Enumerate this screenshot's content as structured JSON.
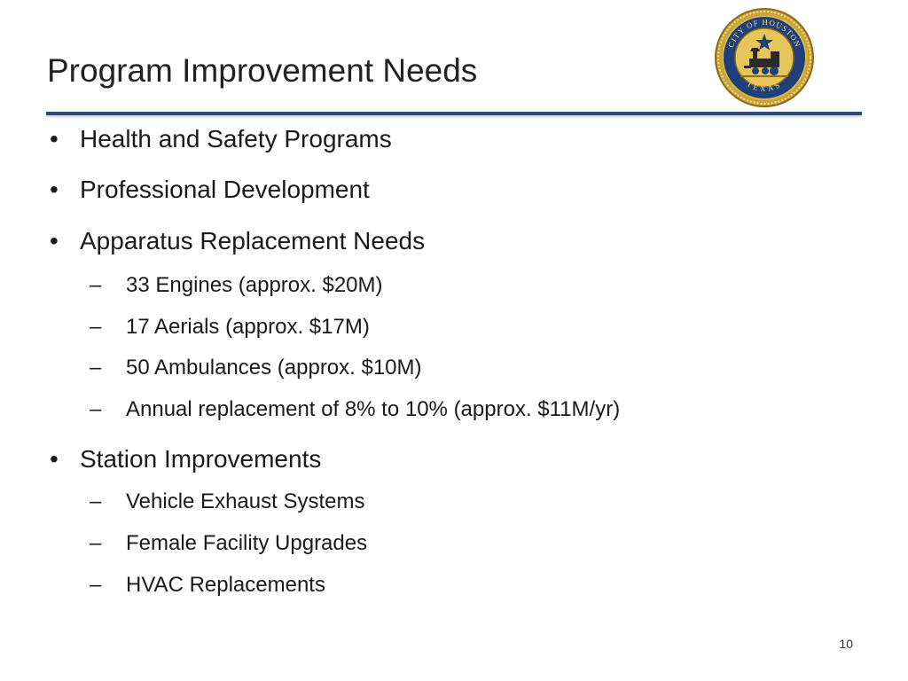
{
  "slide": {
    "title": "Program Improvement Needs",
    "page_number": "10",
    "accent_color": "#2e4a78"
  },
  "seal": {
    "icon": "city-of-houston-seal-icon",
    "ring_text_top": "CITY OF HOUSTON",
    "ring_text_bottom": "TEXAS"
  },
  "bullets": {
    "b1": {
      "marker": "•",
      "text": "Health and Safety Programs"
    },
    "b2": {
      "marker": "•",
      "text": "Professional Development"
    },
    "b3": {
      "marker": "•",
      "text": "Apparatus Replacement Needs",
      "sub": [
        {
          "marker": "–",
          "text": "33 Engines (approx. $20M)"
        },
        {
          "marker": "–",
          "text": "17 Aerials (approx. $17M)"
        },
        {
          "marker": "–",
          "text": "50 Ambulances (approx. $10M)"
        },
        {
          "marker": "–",
          "text": "Annual replacement of 8% to 10% (approx. $11M/yr)"
        }
      ]
    },
    "b4": {
      "marker": "•",
      "text": "Station Improvements",
      "sub": [
        {
          "marker": "–",
          "text": "Vehicle Exhaust Systems"
        },
        {
          "marker": "–",
          "text": "Female Facility Upgrades"
        },
        {
          "marker": "–",
          "text": "HVAC Replacements"
        }
      ]
    }
  }
}
